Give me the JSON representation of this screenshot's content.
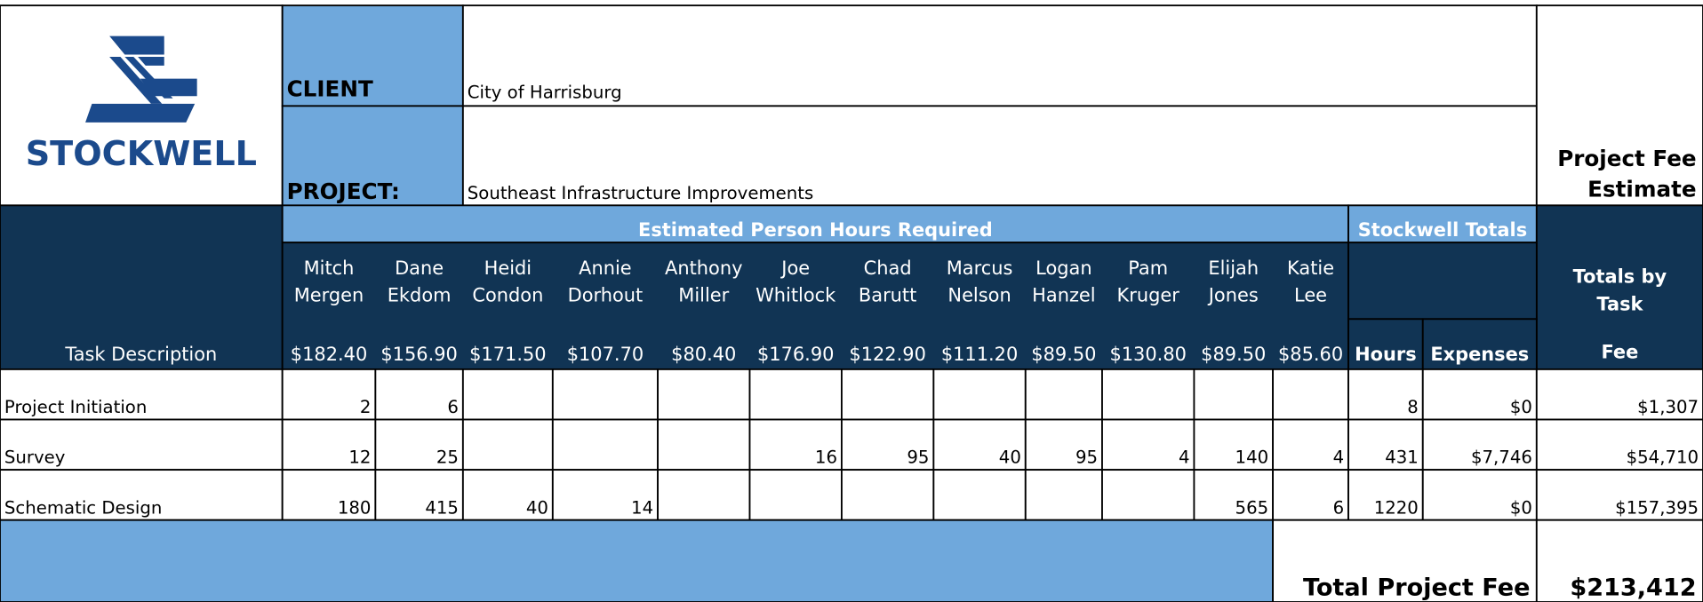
{
  "header": {
    "logo_text": "STOCKWELL",
    "client_label": "CLIENT",
    "client": "City of Harrisburg",
    "project_label": "PROJECT:",
    "project": "Southeast Infrastructure Improvements",
    "title_lines": [
      "Project Fee",
      "Estimate"
    ]
  },
  "table": {
    "hours_heading": "Estimated Person Hours Required",
    "totals_heading": "Stockwell Totals",
    "task_heading": "Task Description",
    "fee_heading_lines": [
      "Totals by",
      "Task"
    ],
    "fee_label": "Fee",
    "hours_label": "Hours",
    "expenses_label": "Expenses",
    "people": [
      {
        "first": "Mitch",
        "last": "Mergen",
        "rate": "$182.40"
      },
      {
        "first": "Dane",
        "last": "Ekdom",
        "rate": "$156.90"
      },
      {
        "first": "Heidi",
        "last": "Condon",
        "rate": "$171.50"
      },
      {
        "first": "Annie",
        "last": "Dorhout",
        "rate": "$107.70"
      },
      {
        "first": "Anthony",
        "last": "Miller",
        "rate": "$80.40"
      },
      {
        "first": "Joe",
        "last": "Whitlock",
        "rate": "$176.90"
      },
      {
        "first": "Chad",
        "last": "Barutt",
        "rate": "$122.90"
      },
      {
        "first": "Marcus",
        "last": "Nelson",
        "rate": "$111.20"
      },
      {
        "first": "Logan",
        "last": "Hanzel",
        "rate": "$89.50"
      },
      {
        "first": "Pam",
        "last": "Kruger",
        "rate": "$130.80"
      },
      {
        "first": "Elijah",
        "last": "Jones",
        "rate": "$89.50"
      },
      {
        "first": "Katie",
        "last": "Lee",
        "rate": "$85.60"
      }
    ],
    "rows": [
      {
        "task": "Project Initiation",
        "hours": [
          2,
          6,
          null,
          null,
          null,
          null,
          null,
          null,
          null,
          null,
          null,
          null
        ],
        "total_hours": 8,
        "expenses": "$0",
        "fee": "$1,307"
      },
      {
        "task": "Survey",
        "hours": [
          12,
          25,
          null,
          null,
          null,
          16,
          95,
          40,
          95,
          4,
          140,
          4
        ],
        "total_hours": 431,
        "expenses": "$7,746",
        "fee": "$54,710"
      },
      {
        "task": "Schematic Design",
        "hours": [
          180,
          415,
          40,
          14,
          null,
          null,
          null,
          null,
          null,
          null,
          565,
          6
        ],
        "total_hours": 1220,
        "expenses": "$0",
        "fee": "$157,395"
      }
    ]
  },
  "footer": {
    "label": "Total Project Fee",
    "total": "$213,412"
  }
}
